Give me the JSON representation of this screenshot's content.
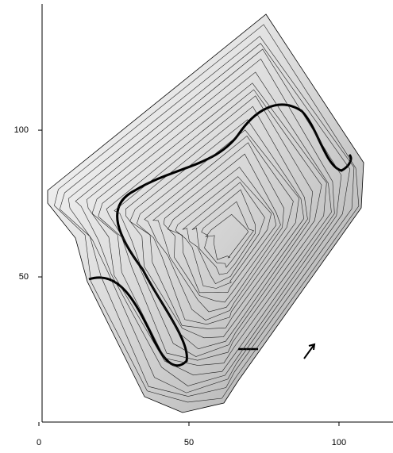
{
  "chart_data": {
    "type": "contour",
    "xlim": [
      0,
      118
    ],
    "ylim": [
      0,
      143
    ],
    "xticks": [
      0,
      50,
      100
    ],
    "yticks": [
      50,
      100
    ]
  }
}
